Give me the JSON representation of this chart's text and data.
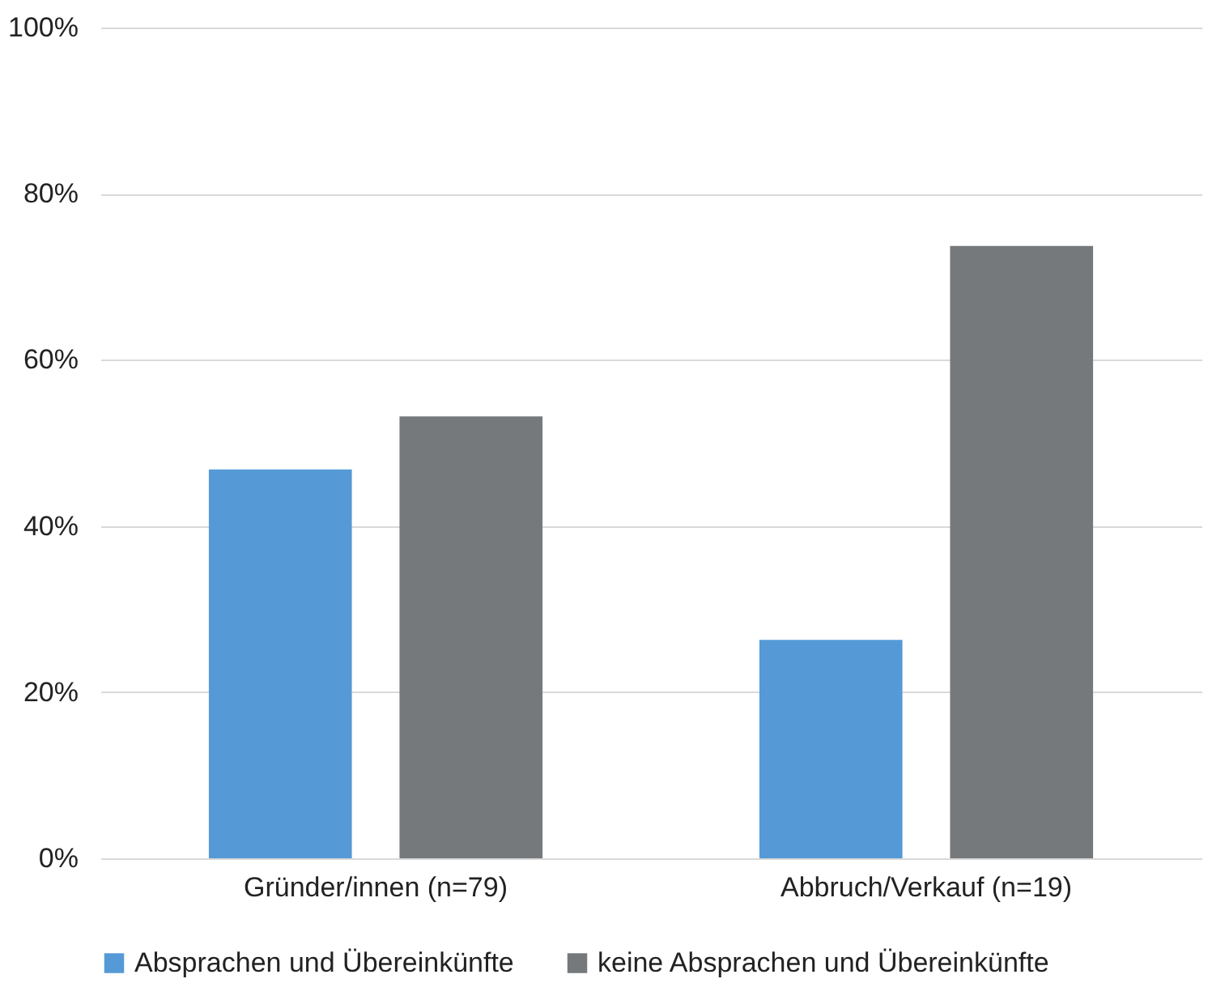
{
  "chart_data": {
    "type": "bar",
    "categories": [
      "Gründer/innen (n=79)",
      "Abbruch/Verkauf (n=19)"
    ],
    "series": [
      {
        "name": "Absprachen und Übereinkünfte",
        "color": "#559ad6",
        "values": [
          46.8,
          26.3
        ]
      },
      {
        "name": "keine Absprachen und Übereinkünfte",
        "color": "#76797b",
        "values": [
          53.2,
          73.7
        ]
      }
    ],
    "ylim": [
      0,
      100
    ],
    "yticks": [
      {
        "value": 0,
        "label": "0%"
      },
      {
        "value": 20,
        "label": "20%"
      },
      {
        "value": 40,
        "label": "40%"
      },
      {
        "value": 60,
        "label": "60%"
      },
      {
        "value": 80,
        "label": "80%"
      },
      {
        "value": 100,
        "label": "100%"
      }
    ],
    "grid": "y",
    "legend": "bottom"
  }
}
